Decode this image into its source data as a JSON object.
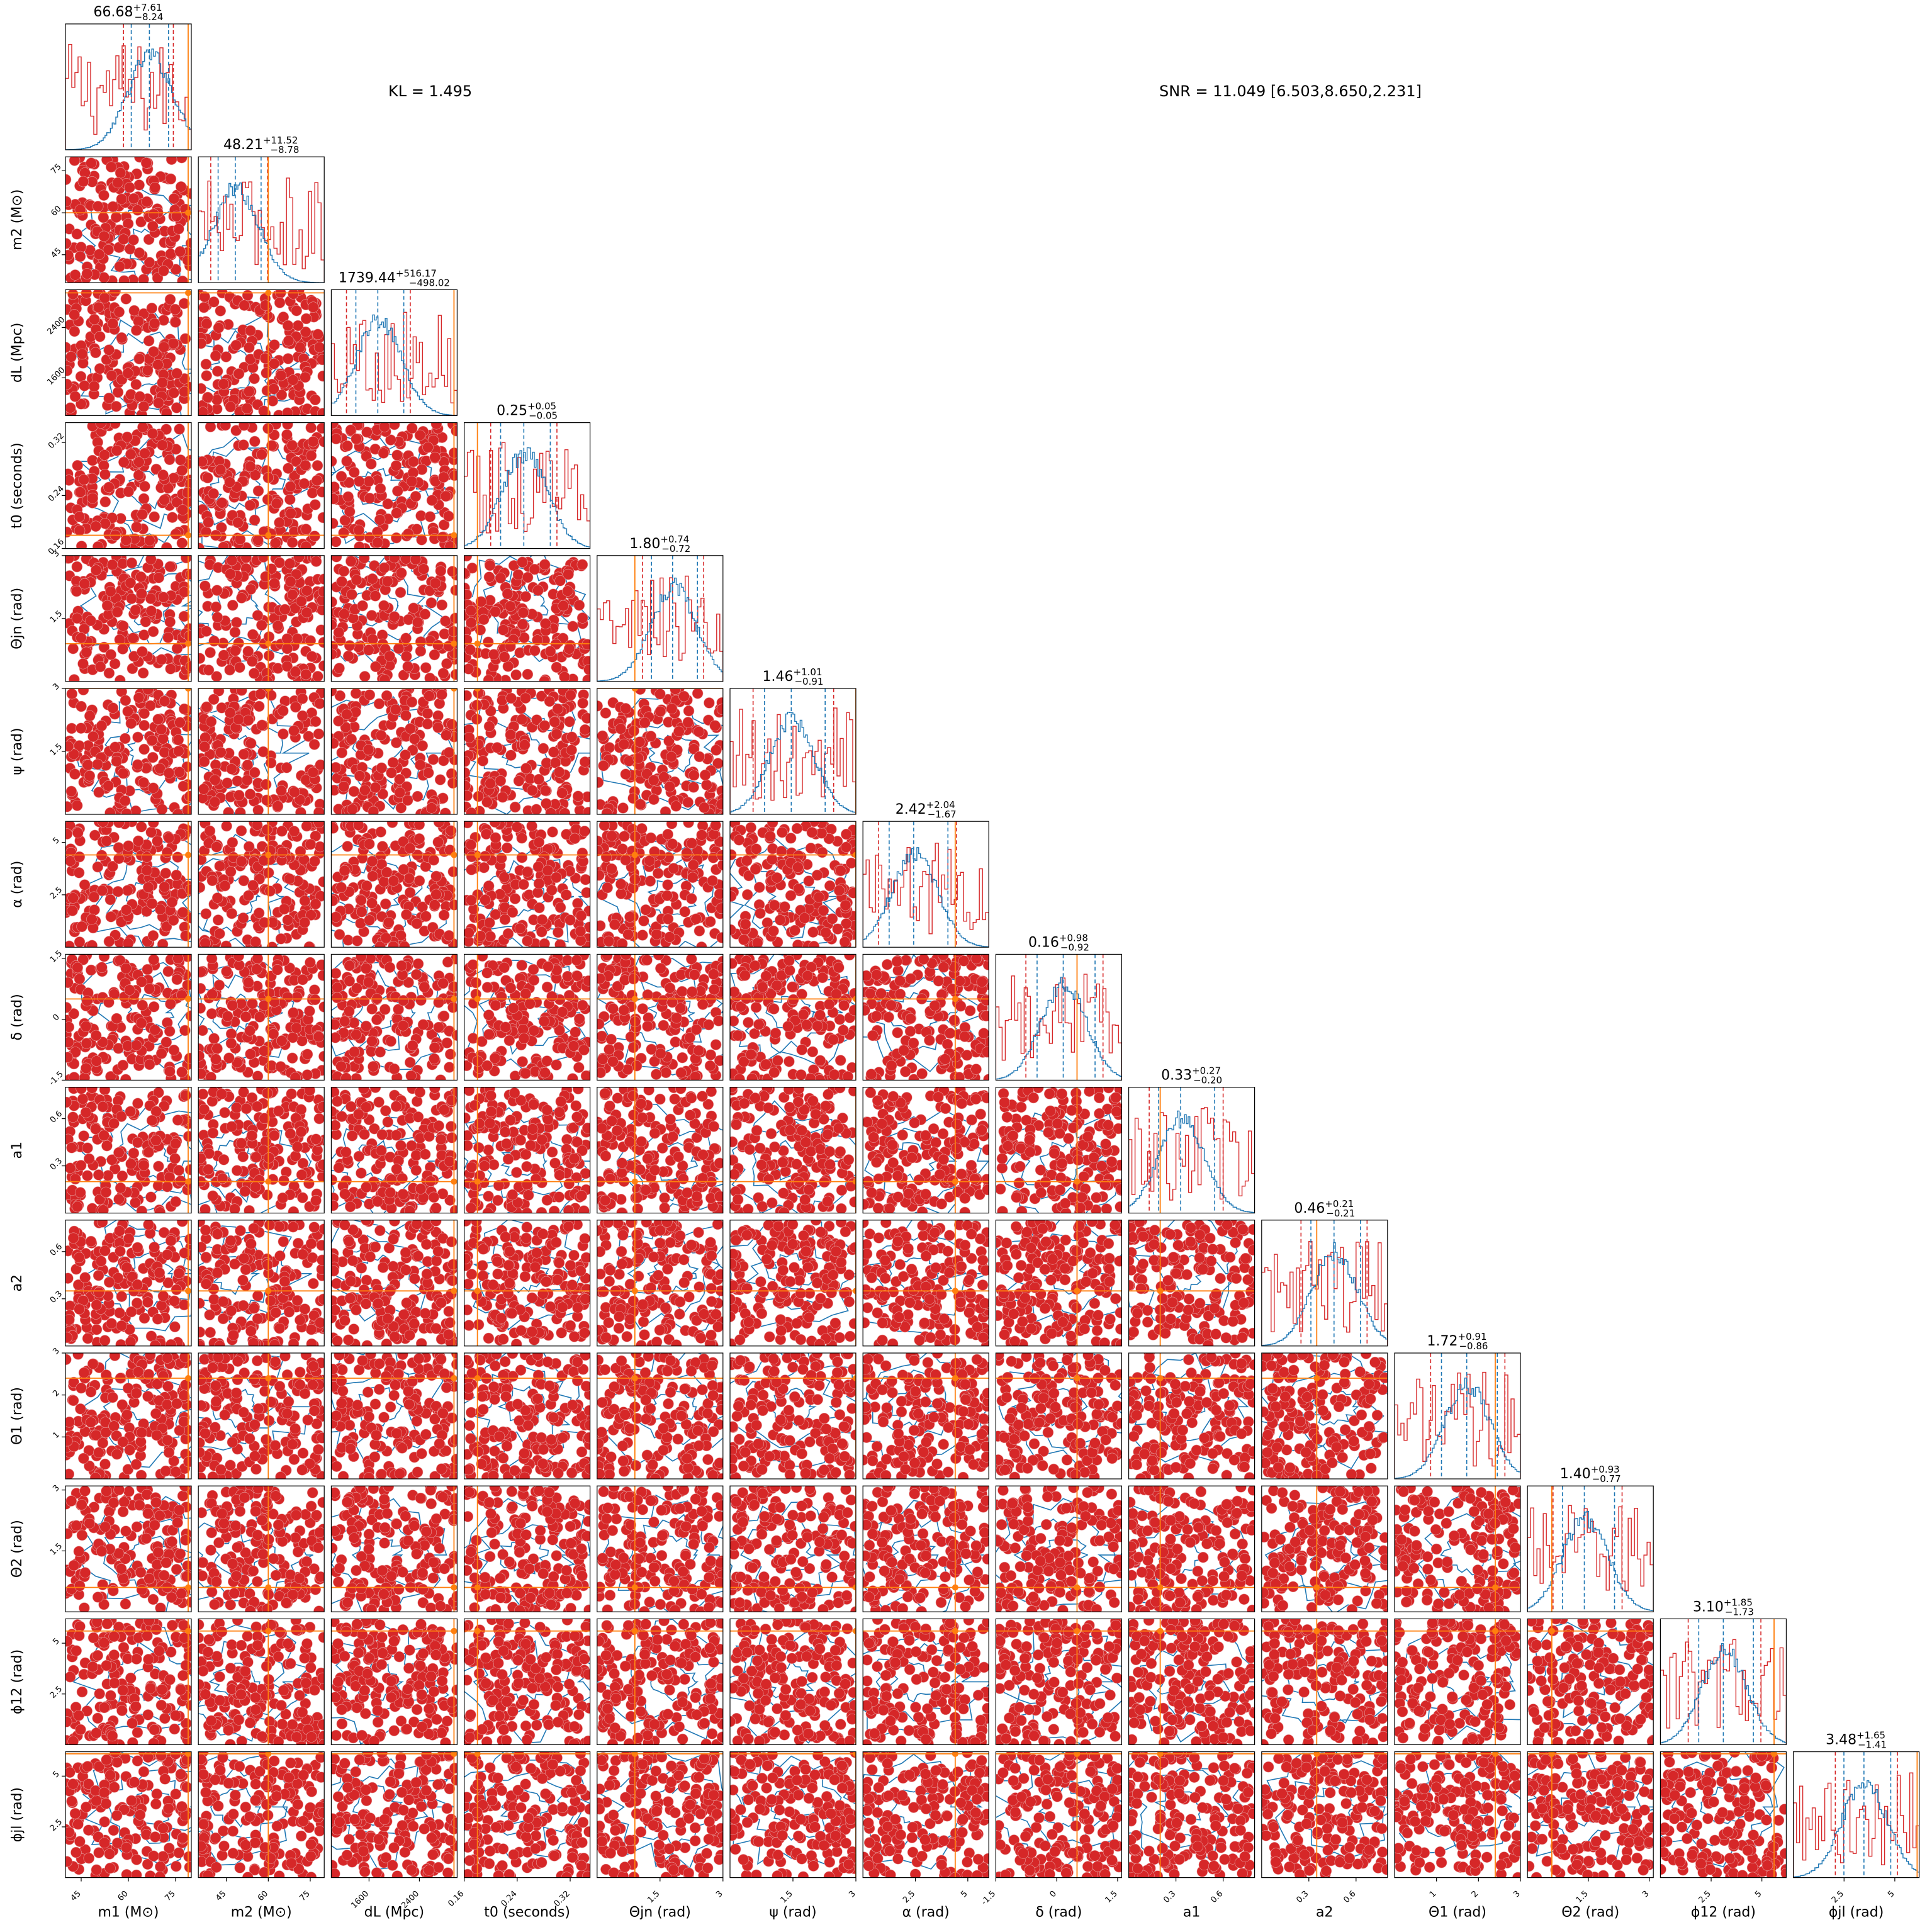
{
  "header": {
    "kl_text": "KL = 1.495",
    "snr_text": "SNR = 11.049 [6.503,8.650,2.231]"
  },
  "colors": {
    "red_samples": "#d62728",
    "blue_samples": "#1f77b4",
    "truth": "#ff7f0e",
    "frame": "#000000"
  },
  "chart_data": {
    "type": "corner",
    "title": "",
    "grid": false,
    "legend": "none",
    "series": [
      {
        "color": "#d62728",
        "style": "scatter + step histogram"
      },
      {
        "color": "#1f77b4",
        "style": "contours + step histogram"
      }
    ],
    "parameters": [
      {
        "label": "m1 (M⊙)",
        "median": 66.68,
        "plus": 7.61,
        "minus": 8.24,
        "range": [
          40,
          80
        ],
        "ticks": [
          45,
          60,
          75
        ],
        "truth": 79
      },
      {
        "label": "m2 (M⊙)",
        "median": 48.21,
        "plus": 11.52,
        "minus": 8.78,
        "range": [
          35,
          80
        ],
        "ticks": [
          45,
          60,
          75
        ],
        "truth": 60
      },
      {
        "label": "dL (Mpc)",
        "median": 1739.44,
        "plus": 516.17,
        "minus": 498.02,
        "range": [
          1000,
          3000
        ],
        "ticks": [
          1600,
          2400
        ],
        "truth": 2950
      },
      {
        "label": "t0 (seconds)",
        "median": 0.25,
        "plus": 0.05,
        "minus": 0.05,
        "range": [
          0.16,
          0.35
        ],
        "ticks": [
          0.16,
          0.24,
          0.32
        ],
        "truth": 0.18
      },
      {
        "label": "Θjn (rad)",
        "median": 1.8,
        "plus": 0.74,
        "minus": 0.72,
        "range": [
          0,
          3
        ],
        "ticks": [
          1.5,
          3.0
        ],
        "truth": 0.9
      },
      {
        "label": "ψ (rad)",
        "median": 1.46,
        "plus": 1.01,
        "minus": 0.91,
        "range": [
          0,
          3
        ],
        "ticks": [
          1.5,
          3.0
        ],
        "truth": 3.0
      },
      {
        "label": "α (rad)",
        "median": 2.42,
        "plus": 2.04,
        "minus": 1.67,
        "range": [
          0,
          6
        ],
        "ticks": [
          2.5,
          5.0
        ],
        "truth": 4.4
      },
      {
        "label": "δ (rad)",
        "median": 0.16,
        "plus": 0.98,
        "minus": 0.92,
        "range": [
          -1.5,
          1.6
        ],
        "ticks": [
          -1.5,
          0.0,
          1.5
        ],
        "truth": 0.5
      },
      {
        "label": "a1",
        "median": 0.33,
        "plus": 0.27,
        "minus": 0.2,
        "range": [
          0,
          0.8
        ],
        "ticks": [
          0.3,
          0.6
        ],
        "truth": 0.2
      },
      {
        "label": "a2",
        "median": 0.46,
        "plus": 0.21,
        "minus": 0.21,
        "range": [
          0,
          0.8
        ],
        "ticks": [
          0.3,
          0.6
        ],
        "truth": 0.35
      },
      {
        "label": "Θ1 (rad)",
        "median": 1.72,
        "plus": 0.91,
        "minus": 0.86,
        "range": [
          0,
          3
        ],
        "ticks": [
          1,
          2,
          3
        ],
        "truth": 2.4
      },
      {
        "label": "Θ2 (rad)",
        "median": 1.4,
        "plus": 0.93,
        "minus": 0.77,
        "range": [
          0,
          3.1
        ],
        "ticks": [
          1.5,
          3.0
        ],
        "truth": 0.6
      },
      {
        "label": "ϕ12 (rad)",
        "median": 3.1,
        "plus": 1.85,
        "minus": 1.73,
        "range": [
          0,
          6.2
        ],
        "ticks": [
          2.5,
          5.0
        ],
        "truth": 5.6
      },
      {
        "label": "ϕjl (rad)",
        "median": 3.48,
        "plus": 1.65,
        "minus": 1.41,
        "range": [
          0,
          6.2
        ],
        "ticks": [
          2.5,
          5.0
        ],
        "truth": 6.1
      }
    ]
  }
}
